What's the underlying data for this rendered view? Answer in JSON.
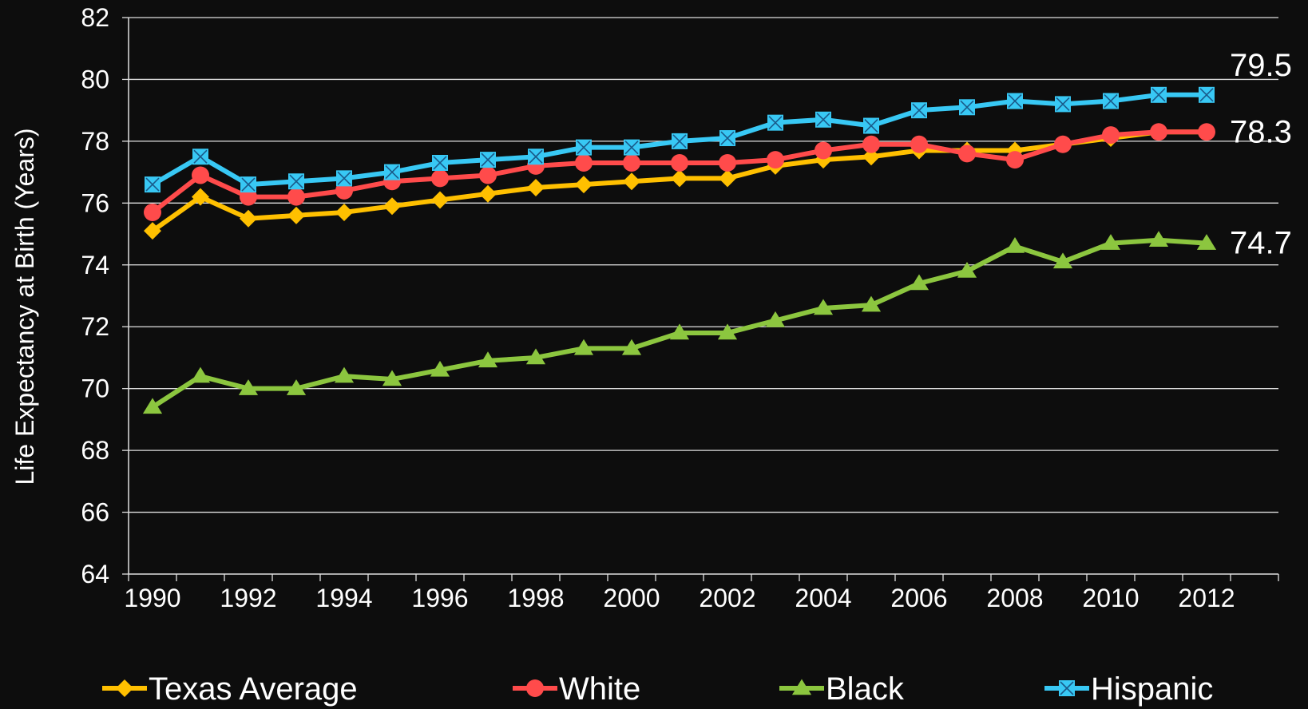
{
  "chart_data": {
    "type": "line",
    "title": "",
    "xlabel": "",
    "ylabel": "Life Expectancy at Birth (Years)",
    "ylim": [
      64,
      82
    ],
    "yticks": [
      64,
      66,
      68,
      70,
      72,
      74,
      76,
      78,
      80,
      82
    ],
    "xlim": [
      1989.5,
      2013.5
    ],
    "xtick_labels": [
      "1990",
      "1992",
      "1994",
      "1996",
      "1998",
      "2000",
      "2002",
      "2004",
      "2006",
      "2008",
      "2010",
      "2012"
    ],
    "grid": "horizontal",
    "legend_position": "bottom",
    "x": [
      1990,
      1991,
      1992,
      1993,
      1994,
      1995,
      1996,
      1997,
      1998,
      1999,
      2000,
      2001,
      2002,
      2003,
      2004,
      2005,
      2006,
      2007,
      2008,
      2009,
      2010,
      2011,
      2012
    ],
    "series": [
      {
        "name": "Texas Average",
        "color": "#ffc000",
        "marker": "diamond",
        "values": [
          75.1,
          76.2,
          75.5,
          75.6,
          75.7,
          75.9,
          76.1,
          76.3,
          76.5,
          76.6,
          76.7,
          76.8,
          76.8,
          77.2,
          77.4,
          77.5,
          77.7,
          77.7,
          77.7,
          77.9,
          78.1,
          78.3,
          78.3
        ]
      },
      {
        "name": "White",
        "color": "#ff4b4b",
        "marker": "circle",
        "values": [
          75.7,
          76.9,
          76.2,
          76.2,
          76.4,
          76.7,
          76.8,
          76.9,
          77.2,
          77.3,
          77.3,
          77.3,
          77.3,
          77.4,
          77.7,
          77.9,
          77.9,
          77.6,
          77.4,
          77.9,
          78.2,
          78.3,
          78.3
        ]
      },
      {
        "name": "Black",
        "color": "#8cc63f",
        "marker": "triangle",
        "values": [
          69.4,
          70.4,
          70.0,
          70.0,
          70.4,
          70.3,
          70.6,
          70.9,
          71.0,
          71.3,
          71.3,
          71.8,
          71.8,
          72.2,
          72.6,
          72.7,
          73.4,
          73.8,
          74.6,
          74.1,
          74.7,
          74.8,
          74.7
        ]
      },
      {
        "name": "Hispanic",
        "color": "#38c8f4",
        "marker": "square-x",
        "values": [
          76.6,
          77.5,
          76.6,
          76.7,
          76.8,
          77.0,
          77.3,
          77.4,
          77.5,
          77.8,
          77.8,
          78.0,
          78.1,
          78.6,
          78.7,
          78.5,
          79.0,
          79.1,
          79.3,
          79.2,
          79.3,
          79.5,
          79.5
        ]
      }
    ],
    "end_labels": [
      {
        "text": "79.5",
        "series": "Hispanic"
      },
      {
        "text": "78.3",
        "series": "White"
      },
      {
        "text": "74.7",
        "series": "Black"
      }
    ]
  }
}
